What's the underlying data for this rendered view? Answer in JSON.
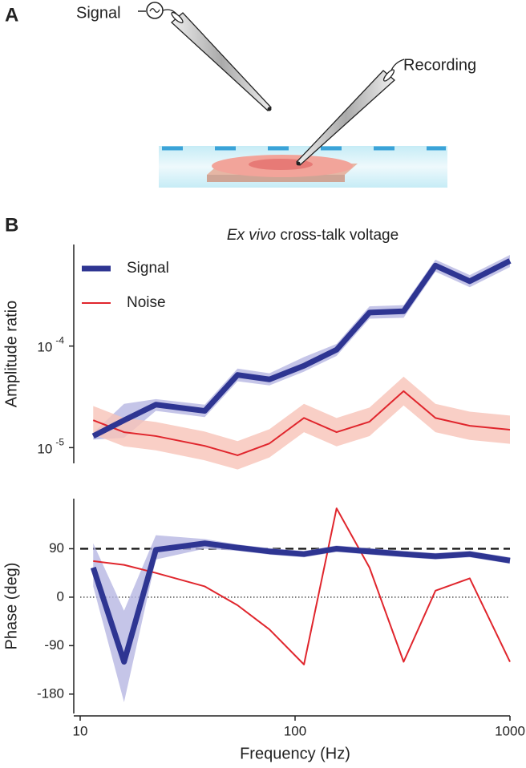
{
  "panel_a": {
    "label": "A",
    "signal_label": "Signal",
    "recording_label": "Recording"
  },
  "panel_b": {
    "label": "B"
  },
  "chart_data": [
    {
      "type": "line",
      "title_italic": "Ex vivo",
      "title": "cross-talk voltage",
      "ylabel": "Amplitude ratio",
      "log_x": true,
      "log_y": true,
      "xlim": [
        10,
        1000
      ],
      "ylim": [
        7e-06,
        0.001
      ],
      "yticks": [
        {
          "value": 1e-05,
          "label": "10",
          "exponent": "-5"
        },
        {
          "value": 0.0001,
          "label": "10",
          "exponent": "-4"
        }
      ],
      "legend": "upper left",
      "x": [
        11.5,
        16,
        22.5,
        38,
        54,
        76,
        110,
        156,
        222,
        320,
        450,
        650,
        1000
      ],
      "series": [
        {
          "name": "Signal",
          "color": "#2e3592",
          "band_color": "#b7b7e2",
          "width": 7,
          "values": [
            1.3e-05,
            1.86e-05,
            2.65e-05,
            2.3e-05,
            5.2e-05,
            4.7e-05,
            6.4e-05,
            9.2e-05,
            0.000214,
            0.00022,
            0.00062,
            0.000435,
            0.00069
          ],
          "lower": [
            1.2e-05,
            1.25e-05,
            2.3e-05,
            2e-05,
            4.5e-05,
            4.1e-05,
            5.6e-05,
            8e-05,
            0.000186,
            0.00019,
            0.00054,
            0.00038,
            0.0006
          ],
          "upper": [
            1.4e-05,
            2.7e-05,
            3e-05,
            2.65e-05,
            6e-05,
            5.4e-05,
            7.8e-05,
            0.000105,
            0.000246,
            0.000253,
            0.00071,
            0.0005,
            0.00079
          ]
        },
        {
          "name": "Noise",
          "color": "#e0262d",
          "band_color": "#f8c3b8",
          "width": 2,
          "values": [
            1.86e-05,
            1.42e-05,
            1.3e-05,
            1.04e-05,
            8.4e-06,
            1.1e-05,
            1.96e-05,
            1.42e-05,
            1.8e-05,
            3.6e-05,
            1.96e-05,
            1.64e-05,
            1.5e-05
          ],
          "lower": [
            1.35e-05,
            1.03e-05,
            9.4e-06,
            7.5e-06,
            6.1e-06,
            8e-06,
            1.42e-05,
            1.03e-05,
            1.3e-05,
            2.6e-05,
            1.42e-05,
            1.19e-05,
            1.09e-05
          ],
          "upper": [
            2.57e-05,
            1.96e-05,
            1.79e-05,
            1.44e-05,
            1.16e-05,
            1.52e-05,
            2.7e-05,
            1.96e-05,
            2.48e-05,
            5e-05,
            2.7e-05,
            2.26e-05,
            2.07e-05
          ]
        }
      ]
    },
    {
      "type": "line",
      "ylabel": "Phase (deg)",
      "xlabel": "Frequency (Hz)",
      "log_x": true,
      "log_y": false,
      "xlim": [
        10,
        1000
      ],
      "ylim": [
        -216,
        183
      ],
      "xticks": [
        10,
        100,
        1000
      ],
      "yticks": [
        -180,
        -90,
        0,
        90
      ],
      "hlines": [
        {
          "value": 90,
          "style": "dashed"
        },
        {
          "value": 0,
          "style": "dotted"
        }
      ],
      "x": [
        11.5,
        16,
        22.5,
        38,
        54,
        76,
        110,
        156,
        222,
        320,
        450,
        650,
        1000
      ],
      "series": [
        {
          "color": "#2e3592",
          "band_color": "#b7b7e2",
          "width": 7,
          "values": [
            55,
            -120,
            88,
            100,
            92,
            85,
            80,
            90,
            85,
            80,
            76,
            80,
            68
          ],
          "lower": [
            20,
            -195,
            70,
            90,
            86,
            79,
            74,
            84,
            79,
            74,
            70,
            74,
            62
          ],
          "upper": [
            100,
            -25,
            115,
            108,
            98,
            91,
            86,
            96,
            91,
            86,
            82,
            86,
            74
          ]
        },
        {
          "color": "#e0262d",
          "width": 2,
          "values": [
            67,
            60,
            45,
            20,
            -15,
            -60,
            -125,
            165,
            55,
            -120,
            12,
            35,
            -120
          ]
        }
      ]
    }
  ]
}
